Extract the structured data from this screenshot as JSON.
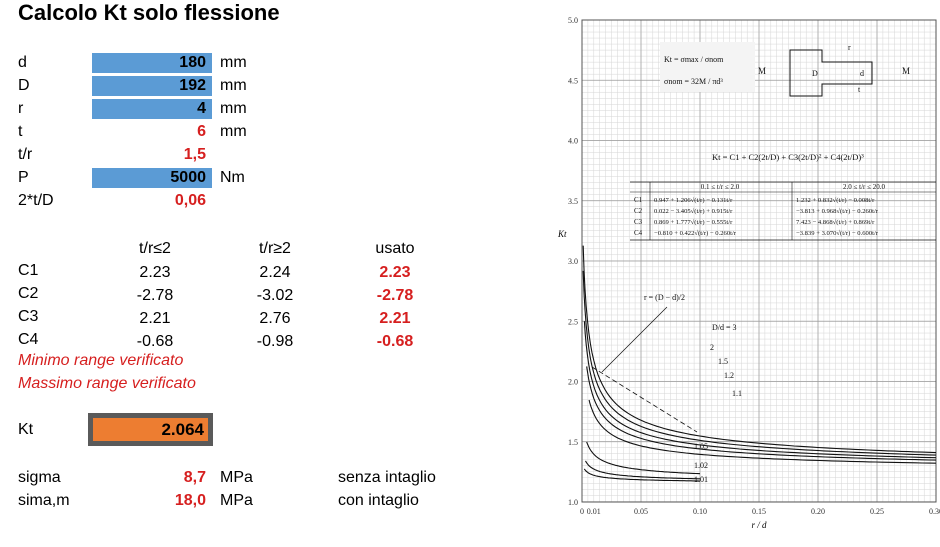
{
  "title": "Calcolo Kt solo flessione",
  "inputs": [
    {
      "label": "d",
      "value": "180",
      "unit": "mm",
      "boxed": true
    },
    {
      "label": "D",
      "value": "192",
      "unit": "mm",
      "boxed": true
    },
    {
      "label": "r",
      "value": "4",
      "unit": "mm",
      "boxed": true
    },
    {
      "label": "t",
      "value": "6",
      "unit": "mm",
      "boxed": false
    },
    {
      "label": "t/r",
      "value": "1,5",
      "unit": "",
      "boxed": false
    },
    {
      "label": "P",
      "value": "5000",
      "unit": "Nm",
      "boxed": true
    },
    {
      "label": "2*t/D",
      "value": "0,06",
      "unit": "",
      "boxed": false
    }
  ],
  "coef_table": {
    "headers": [
      "t/r≤2",
      "t/r≥2",
      "usato"
    ],
    "rows": [
      {
        "name": "C1",
        "a": "2.23",
        "b": "2.24",
        "used": "2.23"
      },
      {
        "name": "C2",
        "a": "-2.78",
        "b": "-3.02",
        "used": "-2.78"
      },
      {
        "name": "C3",
        "a": "2.21",
        "b": "2.76",
        "used": "2.21"
      },
      {
        "name": "C4",
        "a": "-0.68",
        "b": "-0.98",
        "used": "-0.68"
      }
    ]
  },
  "checks": [
    "Minimo range verificato",
    "Massimo range verificato"
  ],
  "kt": {
    "label": "Kt",
    "value": "2.064"
  },
  "stresses": [
    {
      "label": "sigma",
      "value": "8,7",
      "unit": "MPa",
      "note": "senza intaglio"
    },
    {
      "label": "sima,m",
      "value": "18,0",
      "unit": "MPa",
      "note": "con intaglio"
    }
  ],
  "colors": {
    "input_fill": "#5b9bd5",
    "result_fill": "#ed7d31",
    "highlight_text": "#d61f1f"
  },
  "chart": {
    "y_label": "Kt",
    "x_label": "r / d",
    "x_ticks": [
      "0",
      "0.01",
      "0.05",
      "0.10",
      "0.15",
      "0.20",
      "0.25",
      "0.30"
    ],
    "y_ticks": [
      "1.0",
      "1.5",
      "2.0",
      "2.5",
      "3.0",
      "3.5",
      "4.0",
      "4.5",
      "5.0"
    ],
    "curve_labels": [
      "D/d = 3",
      "2",
      "1.5",
      "1.2",
      "1.1",
      "1.05",
      "1.02",
      "1.01"
    ],
    "r_formula": "r = (D − d)/2",
    "kt_def": "Kt = σmax / σnom",
    "snom_def": "σnom = 32M / πd³",
    "main_formula": "Kt = C1 + C2(2t/D) + C3(2t/D)² + C4(2t/D)³",
    "table_headers": [
      "0.1 ≤ t/r ≤ 2.0",
      "2.0 ≤ t/r ≤ 20.0"
    ],
    "table_rows": [
      {
        "c": "C1",
        "a": "0.947 + 1.206√(t/r) − 0.131t/r",
        "b": "1.232 + 0.832√(t/r) − 0.008t/r"
      },
      {
        "c": "C2",
        "a": "0.022 − 3.405√(t/r) + 0.915t/r",
        "b": "−3.813 + 0.968√(t/r) − 0.260t/r"
      },
      {
        "c": "C3",
        "a": "0.869 + 1.777√(t/r) − 0.555t/r",
        "b": "7.423 − 4.868√(t/r) + 0.869t/r"
      },
      {
        "c": "C4",
        "a": "−0.810 + 0.422√(t/r) − 0.260t/r",
        "b": "−3.839 + 3.070√(t/r) − 0.600t/r"
      }
    ]
  }
}
